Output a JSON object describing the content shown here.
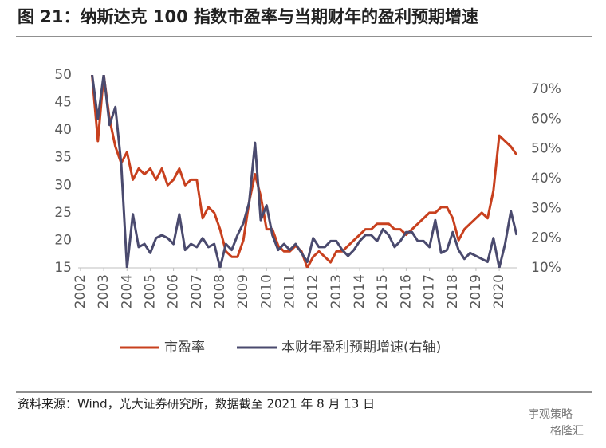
{
  "chart_data": {
    "type": "line",
    "title": "图 21：纳斯达克 100 指数市盈率与当期财年的盈利预期增速",
    "source": "资料来源：Wind，光大证券研究所，数据截至 2021 年 8 月 13 日",
    "watermark": [
      "宇观策略",
      "格隆汇"
    ],
    "x": [
      2002.5,
      2002.75,
      2003,
      2003.25,
      2003.5,
      2003.75,
      2004,
      2004.25,
      2004.5,
      2004.75,
      2005,
      2005.25,
      2005.5,
      2005.75,
      2006,
      2006.25,
      2006.5,
      2006.75,
      2007,
      2007.25,
      2007.5,
      2007.75,
      2008,
      2008.25,
      2008.5,
      2008.75,
      2009,
      2009.25,
      2009.5,
      2009.75,
      2010,
      2010.25,
      2010.5,
      2010.75,
      2011,
      2011.25,
      2011.5,
      2011.75,
      2012,
      2012.25,
      2012.5,
      2012.75,
      2013,
      2013.25,
      2013.5,
      2013.75,
      2014,
      2014.25,
      2014.5,
      2014.75,
      2015,
      2015.25,
      2015.5,
      2015.75,
      2016,
      2016.25,
      2016.5,
      2016.75,
      2017,
      2017.25,
      2017.5,
      2017.75,
      2018,
      2018.25,
      2018.5,
      2018.75,
      2019,
      2019.25,
      2019.5,
      2019.75,
      2020,
      2020.25,
      2020.5,
      2020.75
    ],
    "series": [
      {
        "name": "市盈率",
        "color": "#c8401e",
        "values": [
          50,
          38,
          50,
          42,
          37,
          34,
          36,
          31,
          33,
          32,
          33,
          31,
          33,
          30,
          31,
          33,
          30,
          31,
          31,
          24,
          26,
          25,
          22,
          18,
          17,
          17,
          20,
          27,
          32,
          28,
          22,
          22,
          19,
          18,
          18,
          19,
          18,
          15,
          17,
          18,
          17,
          16,
          18,
          18,
          19,
          20,
          21,
          22,
          22,
          23,
          23,
          23,
          22,
          22,
          21,
          22,
          23,
          24,
          25,
          25,
          26,
          26,
          24,
          20,
          22,
          23,
          24,
          25,
          24,
          29,
          39,
          38,
          37,
          35.5
        ]
      },
      {
        "name": "本财年盈利预期增速(右轴)",
        "color": "#4a4a6e",
        "axis": "y2",
        "values": [
          75,
          60,
          75,
          58,
          64,
          45,
          10,
          28,
          17,
          18,
          15,
          20,
          21,
          20,
          18,
          28,
          16,
          18,
          17,
          20,
          17,
          18,
          10,
          18,
          16,
          21,
          25,
          32,
          52,
          26,
          31,
          21,
          16,
          18,
          16,
          18,
          15,
          12,
          20,
          17,
          17,
          19,
          19,
          16,
          14,
          16,
          19,
          21,
          21,
          19,
          23,
          21,
          17,
          19,
          22,
          22,
          19,
          19,
          17,
          26,
          15,
          16,
          22,
          16,
          13,
          15,
          14,
          13,
          12,
          20,
          10,
          18,
          29,
          21
        ]
      }
    ],
    "xlim": [
      2001.9,
      2020.75
    ],
    "xticks": [
      2002,
      2003,
      2004,
      2005,
      2006,
      2007,
      2008,
      2009,
      2010,
      2011,
      2012,
      2013,
      2014,
      2015,
      2016,
      2017,
      2018,
      2019,
      2020
    ],
    "ylim": [
      15,
      50
    ],
    "yticks": [
      15,
      20,
      25,
      30,
      35,
      40,
      45,
      50
    ],
    "y2lim": [
      10,
      74.8
    ],
    "y2ticks": [
      {
        "value": 10,
        "label": "10%"
      },
      {
        "value": 20,
        "label": "20%"
      },
      {
        "value": 30,
        "label": "30%"
      },
      {
        "value": 40,
        "label": "40%"
      },
      {
        "value": 50,
        "label": "50%"
      },
      {
        "value": 60,
        "label": "60%"
      },
      {
        "value": 70,
        "label": "70%"
      }
    ]
  }
}
